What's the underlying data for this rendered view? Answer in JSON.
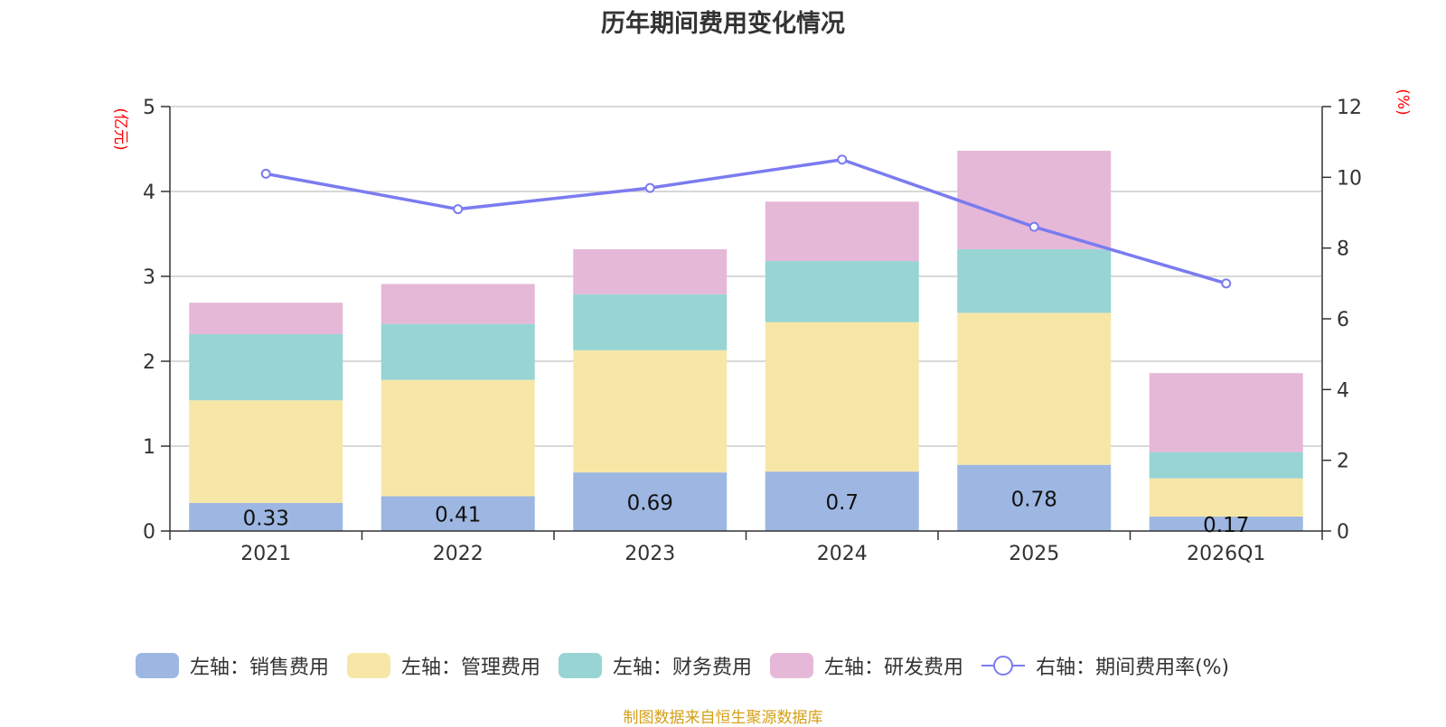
{
  "chart_data": {
    "type": "bar",
    "title": "历年期间费用变化情况",
    "categories": [
      "2021",
      "2022",
      "2023",
      "2024",
      "2025",
      "2026Q1"
    ],
    "left_axis": {
      "label": "(亿元)",
      "min": 0,
      "max": 5,
      "ticks": [
        "0",
        "1",
        "2",
        "3",
        "4",
        "5"
      ]
    },
    "right_axis": {
      "label": "(%)",
      "min": 0,
      "max": 12,
      "ticks": [
        "0",
        "2",
        "4",
        "6",
        "8",
        "10",
        "12"
      ]
    },
    "series": [
      {
        "name": "左轴：销售费用",
        "color": "#9db7e2",
        "axis": "left",
        "values": [
          0.33,
          0.41,
          0.69,
          0.7,
          0.78,
          0.17
        ],
        "labels": [
          "0.33",
          "0.41",
          "0.69",
          "0.7",
          "0.78",
          "0.17"
        ]
      },
      {
        "name": "左轴：管理费用",
        "color": "#f7e7a7",
        "axis": "left",
        "values": [
          1.21,
          1.37,
          1.44,
          1.76,
          1.79,
          0.45
        ]
      },
      {
        "name": "左轴：财务费用",
        "color": "#98d4d4",
        "axis": "left",
        "values": [
          0.78,
          0.66,
          0.66,
          0.72,
          0.75,
          0.31
        ]
      },
      {
        "name": "左轴：研发费用",
        "color": "#e6b8d8",
        "axis": "left",
        "values": [
          0.37,
          0.47,
          0.53,
          0.7,
          1.16,
          0.93
        ]
      }
    ],
    "line_series": {
      "name": "右轴：期间费用率(%)",
      "color": "#7b7bf0",
      "axis": "right",
      "values": [
        10.1,
        9.1,
        9.7,
        10.5,
        8.6,
        7.0
      ]
    },
    "grid": true,
    "legend": "bottom"
  },
  "source": "制图数据来自恒生聚源数据库"
}
